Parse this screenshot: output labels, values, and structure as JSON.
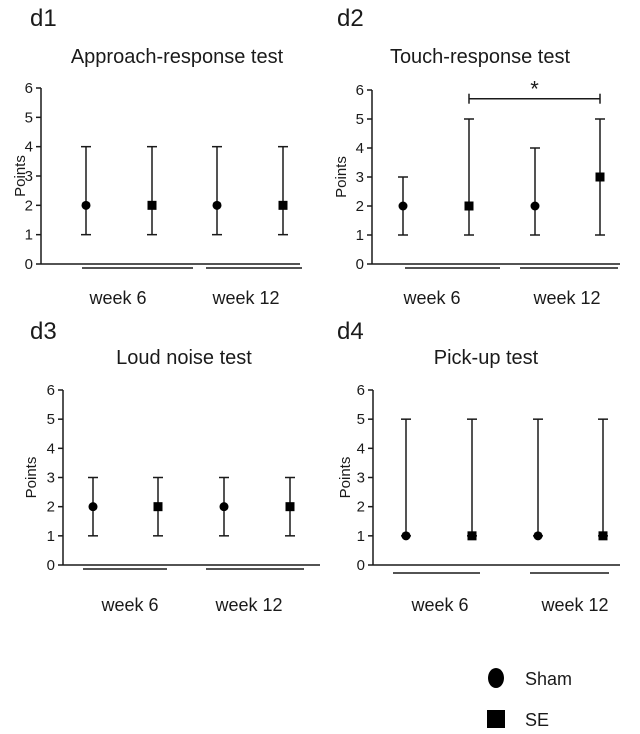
{
  "chart_data": [
    {
      "type": "scatter",
      "panel_label": "d1",
      "title": "Approach-response test",
      "xlabel": "",
      "ylabel": "Points",
      "ylim": [
        0,
        6
      ],
      "yticks": [
        "0",
        "1",
        "2",
        "3",
        "4",
        "5",
        "6"
      ],
      "groups": [
        "week 6",
        "week 12"
      ],
      "points": [
        {
          "group": "week 6",
          "series": "Sham",
          "value": 2,
          "low": 1,
          "high": 4
        },
        {
          "group": "week 6",
          "series": "SE",
          "value": 2,
          "low": 1,
          "high": 4
        },
        {
          "group": "week 12",
          "series": "Sham",
          "value": 2,
          "low": 1,
          "high": 4
        },
        {
          "group": "week 12",
          "series": "SE",
          "value": 2,
          "low": 1,
          "high": 4
        }
      ],
      "significance": []
    },
    {
      "type": "scatter",
      "panel_label": "d2",
      "title": "Touch-response test",
      "xlabel": "",
      "ylabel": "Points",
      "ylim": [
        0,
        6
      ],
      "yticks": [
        "0",
        "1",
        "2",
        "3",
        "4",
        "5",
        "6"
      ],
      "groups": [
        "week 6",
        "week 12"
      ],
      "points": [
        {
          "group": "week 6",
          "series": "Sham",
          "value": 2,
          "low": 1,
          "high": 3
        },
        {
          "group": "week 6",
          "series": "SE",
          "value": 2,
          "low": 1,
          "high": 5
        },
        {
          "group": "week 12",
          "series": "Sham",
          "value": 2,
          "low": 1,
          "high": 4
        },
        {
          "group": "week 12",
          "series": "SE",
          "value": 3,
          "low": 1,
          "high": 5
        }
      ],
      "significance": [
        {
          "from": 1,
          "to": 3,
          "y": 5.7,
          "label": "*"
        }
      ]
    },
    {
      "type": "scatter",
      "panel_label": "d3",
      "title": "Loud noise test",
      "xlabel": "",
      "ylabel": "Points",
      "ylim": [
        0,
        6
      ],
      "yticks": [
        "0",
        "1",
        "2",
        "3",
        "4",
        "5",
        "6"
      ],
      "groups": [
        "week 6",
        "week 12"
      ],
      "points": [
        {
          "group": "week 6",
          "series": "Sham",
          "value": 2,
          "low": 1,
          "high": 3
        },
        {
          "group": "week 6",
          "series": "SE",
          "value": 2,
          "low": 1,
          "high": 3
        },
        {
          "group": "week 12",
          "series": "Sham",
          "value": 2,
          "low": 1,
          "high": 3
        },
        {
          "group": "week 12",
          "series": "SE",
          "value": 2,
          "low": 1,
          "high": 3
        }
      ],
      "significance": []
    },
    {
      "type": "scatter",
      "panel_label": "d4",
      "title": "Pick-up test",
      "xlabel": "",
      "ylabel": "Points",
      "ylim": [
        0,
        6
      ],
      "yticks": [
        "0",
        "1",
        "2",
        "3",
        "4",
        "5",
        "6"
      ],
      "groups": [
        "week 6",
        "week 12"
      ],
      "points": [
        {
          "group": "week 6",
          "series": "Sham",
          "value": 1,
          "low": 1,
          "high": 5
        },
        {
          "group": "week 6",
          "series": "SE",
          "value": 1,
          "low": 1,
          "high": 5
        },
        {
          "group": "week 12",
          "series": "Sham",
          "value": 1,
          "low": 1,
          "high": 5
        },
        {
          "group": "week 12",
          "series": "SE",
          "value": 1,
          "low": 1,
          "high": 5
        }
      ],
      "significance": []
    }
  ],
  "legend": [
    {
      "label": "Sham",
      "marker": "circle"
    },
    {
      "label": "SE",
      "marker": "square"
    }
  ],
  "colors": {
    "ink": "#1a1a1a",
    "marker": "#000000"
  }
}
